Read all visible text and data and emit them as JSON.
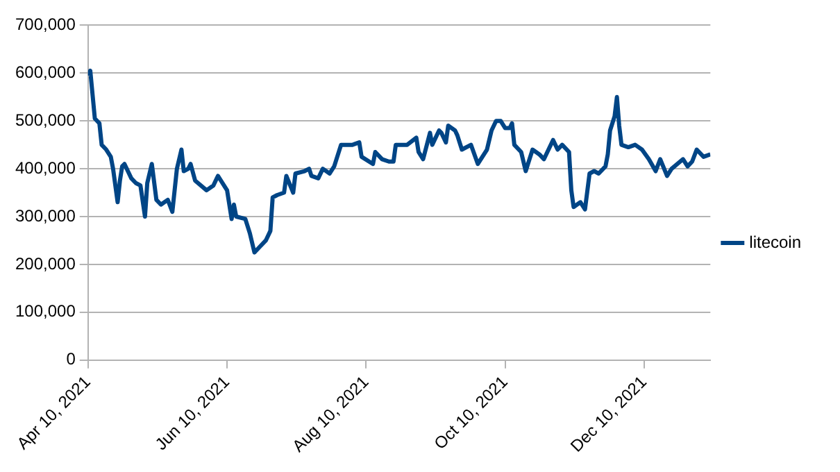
{
  "chart_data": {
    "type": "line",
    "x": [
      "2021-04-10",
      "2021-04-11",
      "2021-04-12",
      "2021-04-13",
      "2021-04-15",
      "2021-04-16",
      "2021-04-18",
      "2021-04-20",
      "2021-04-21",
      "2021-04-23",
      "2021-04-24",
      "2021-04-25",
      "2021-04-26",
      "2021-04-29",
      "2021-05-01",
      "2021-05-03",
      "2021-05-05",
      "2021-05-06",
      "2021-05-08",
      "2021-05-10",
      "2021-05-12",
      "2021-05-15",
      "2021-05-17",
      "2021-05-19",
      "2021-05-21",
      "2021-05-22",
      "2021-05-24",
      "2021-05-25",
      "2021-05-27",
      "2021-06-01",
      "2021-06-04",
      "2021-06-06",
      "2021-06-10",
      "2021-06-12",
      "2021-06-13",
      "2021-06-14",
      "2021-06-18",
      "2021-06-20",
      "2021-06-22",
      "2021-06-24",
      "2021-06-27",
      "2021-06-29",
      "2021-06-30",
      "2021-07-02",
      "2021-07-05",
      "2021-07-06",
      "2021-07-09",
      "2021-07-10",
      "2021-07-14",
      "2021-07-16",
      "2021-07-17",
      "2021-07-20",
      "2021-07-22",
      "2021-07-25",
      "2021-07-27",
      "2021-07-30",
      "2021-08-04",
      "2021-08-07",
      "2021-08-08",
      "2021-08-13",
      "2021-08-14",
      "2021-08-17",
      "2021-08-20",
      "2021-08-22",
      "2021-08-23",
      "2021-08-28",
      "2021-09-01",
      "2021-09-02",
      "2021-09-04",
      "2021-09-07",
      "2021-09-08",
      "2021-09-11",
      "2021-09-12",
      "2021-09-14",
      "2021-09-15",
      "2021-09-18",
      "2021-09-19",
      "2021-09-21",
      "2021-09-25",
      "2021-09-28",
      "2021-10-02",
      "2021-10-04",
      "2021-10-06",
      "2021-10-08",
      "2021-10-10",
      "2021-10-12",
      "2021-10-13",
      "2021-10-14",
      "2021-10-17",
      "2021-10-19",
      "2021-10-22",
      "2021-10-25",
      "2021-10-27",
      "2021-10-31",
      "2021-11-02",
      "2021-11-04",
      "2021-11-07",
      "2021-11-08",
      "2021-11-09",
      "2021-11-12",
      "2021-11-14",
      "2021-11-16",
      "2021-11-18",
      "2021-11-20",
      "2021-11-23",
      "2021-11-24",
      "2021-11-25",
      "2021-11-27",
      "2021-11-28",
      "2021-11-29",
      "2021-11-30",
      "2021-12-03",
      "2021-12-06",
      "2021-12-09",
      "2021-12-12",
      "2021-12-15",
      "2021-12-17",
      "2021-12-20",
      "2021-12-22",
      "2021-12-27",
      "2021-12-29",
      "2021-12-31",
      "2022-01-02",
      "2022-01-05",
      "2022-01-08"
    ],
    "series": [
      {
        "name": "litecoin",
        "color": "#004586",
        "values": [
          595000,
          605000,
          555000,
          505000,
          495000,
          450000,
          440000,
          425000,
          400000,
          330000,
          375000,
          405000,
          410000,
          380000,
          370000,
          365000,
          300000,
          370000,
          410000,
          335000,
          325000,
          335000,
          310000,
          400000,
          440000,
          395000,
          400000,
          410000,
          375000,
          355000,
          365000,
          385000,
          355000,
          295000,
          325000,
          300000,
          295000,
          265000,
          225000,
          235000,
          250000,
          270000,
          340000,
          345000,
          350000,
          385000,
          350000,
          390000,
          395000,
          400000,
          385000,
          380000,
          400000,
          390000,
          405000,
          450000,
          450000,
          455000,
          425000,
          410000,
          435000,
          420000,
          415000,
          415000,
          450000,
          450000,
          465000,
          435000,
          420000,
          475000,
          450000,
          480000,
          475000,
          455000,
          490000,
          480000,
          470000,
          440000,
          450000,
          410000,
          440000,
          480000,
          500000,
          500000,
          485000,
          485000,
          495000,
          450000,
          435000,
          395000,
          440000,
          430000,
          420000,
          460000,
          440000,
          450000,
          435000,
          355000,
          320000,
          330000,
          315000,
          390000,
          395000,
          390000,
          405000,
          430000,
          480000,
          510000,
          550000,
          490000,
          450000,
          445000,
          450000,
          440000,
          420000,
          395000,
          420000,
          385000,
          400000,
          420000,
          405000,
          415000,
          440000,
          425000,
          430000
        ]
      }
    ],
    "xlim": [
      "2021-04-10",
      "2022-01-08"
    ],
    "xticks": [
      {
        "value": "2021-04-10",
        "label": "Apr 10, 2021"
      },
      {
        "value": "2021-06-10",
        "label": "Jun 10, 2021"
      },
      {
        "value": "2021-08-10",
        "label": "Aug 10, 2021"
      },
      {
        "value": "2021-10-10",
        "label": "Oct 10, 2021"
      },
      {
        "value": "2021-12-10",
        "label": "Dec 10, 2021"
      }
    ],
    "ylim": [
      0,
      700000
    ],
    "yticks": [
      {
        "value": 0,
        "label": "0"
      },
      {
        "value": 100000,
        "label": "100,000"
      },
      {
        "value": 200000,
        "label": "200,000"
      },
      {
        "value": 300000,
        "label": "300,000"
      },
      {
        "value": 400000,
        "label": "400,000"
      },
      {
        "value": 500000,
        "label": "500,000"
      },
      {
        "value": 600000,
        "label": "600,000"
      },
      {
        "value": 700000,
        "label": "700,000"
      }
    ],
    "grid": "y",
    "legend": "right",
    "marker": "none",
    "line_style": "solid"
  }
}
